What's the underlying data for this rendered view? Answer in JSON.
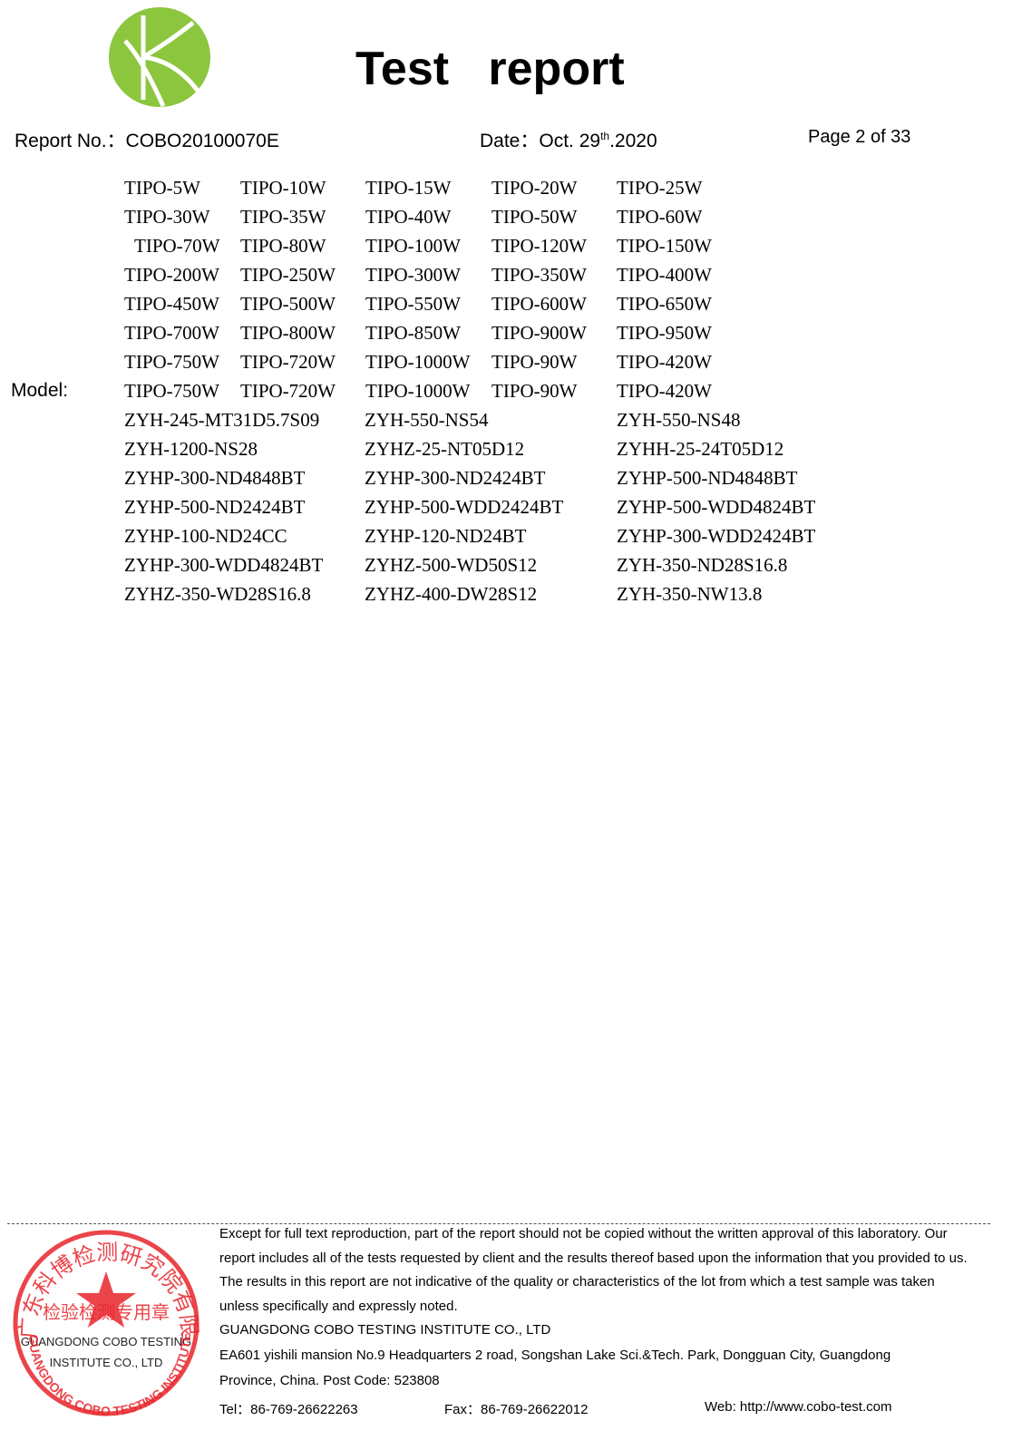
{
  "header": {
    "title": "Test   report",
    "report_no": "Report No.：COBO20100070E",
    "date_main": "Date：Oct. 29",
    "date_sup": "th",
    "date_end": ".2020",
    "page": "Page 2 of 33"
  },
  "models": {
    "label": "Model:",
    "tipo_rows": [
      [
        "TIPO-5W",
        "TIPO-10W",
        "TIPO-15W",
        "TIPO-20W",
        "TIPO-25W"
      ],
      [
        "TIPO-30W",
        "TIPO-35W",
        "TIPO-40W",
        "TIPO-50W",
        "TIPO-60W"
      ],
      [
        "TIPO-70W",
        "TIPO-80W",
        "TIPO-100W",
        "TIPO-120W",
        "TIPO-150W"
      ],
      [
        "TIPO-200W",
        "TIPO-250W",
        "TIPO-300W",
        "TIPO-350W",
        "TIPO-400W"
      ],
      [
        "TIPO-450W",
        "TIPO-500W",
        "TIPO-550W",
        "TIPO-600W",
        "TIPO-650W"
      ],
      [
        "TIPO-700W",
        "TIPO-800W",
        "TIPO-850W",
        "TIPO-900W",
        "TIPO-950W"
      ],
      [
        "TIPO-750W",
        "TIPO-720W",
        "TIPO-1000W",
        "TIPO-90W",
        "TIPO-420W"
      ],
      [
        "TIPO-750W",
        "TIPO-720W",
        "TIPO-1000W",
        "TIPO-90W",
        "TIPO-420W"
      ]
    ],
    "zyh_rows": [
      [
        "ZYH-245-MT31D5.7S09",
        "ZYH-550-NS54",
        "ZYH-550-NS48"
      ],
      [
        "ZYH-1200-NS28",
        "ZYHZ-25-NT05D12",
        "ZYHH-25-24T05D12"
      ],
      [
        "ZYHP-300-ND4848BT",
        "ZYHP-300-ND2424BT",
        "ZYHP-500-ND4848BT"
      ],
      [
        "ZYHP-500-ND2424BT",
        "ZYHP-500-WDD2424BT",
        "ZYHP-500-WDD4824BT"
      ],
      [
        "ZYHP-100-ND24CC",
        "ZYHP-120-ND24BT",
        "ZYHP-300-WDD2424BT"
      ],
      [
        "ZYHP-300-WDD4824BT",
        "ZYHZ-500-WD50S12",
        "ZYH-350-ND28S16.8"
      ],
      [
        "ZYHZ-350-WD28S16.8",
        "ZYHZ-400-DW28S12",
        "ZYH-350-NW13.8"
      ]
    ]
  },
  "footer": {
    "disclaimer": [
      "Except for full text reproduction, part of the report should not be copied without the written approval of this laboratory. Our",
      "report includes all of the tests requested by client and the results thereof based upon the information that you provided to us.",
      "The results in this report are not indicative of the quality or characteristics of the lot from which a test sample was taken",
      "unless specifically and expressly noted."
    ],
    "company": "GUANGDONG COBO TESTING INSTITUTE CO., LTD",
    "address": [
      "EA601 yishili mansion No.9 Headquarters 2 road, Songshan Lake Sci.&Tech. Park, Dongguan City, Guangdong",
      "Province, China. Post Code: 523808"
    ],
    "tel": "Tel：86-769-26622263",
    "fax": "Fax：86-769-26622012",
    "web": "Web: http://www.cobo-test.com"
  },
  "stamp": {
    "arc_top": "广东科博检测研究院有限公司",
    "middle": "检验检测专用章",
    "line1": "GUANGDONG COBO TESTING",
    "line2": "INSTITUTE CO., LTD",
    "arc_bottom": "GUANGDONG COBO TESTING INSTITUTE CO.,LTD"
  }
}
